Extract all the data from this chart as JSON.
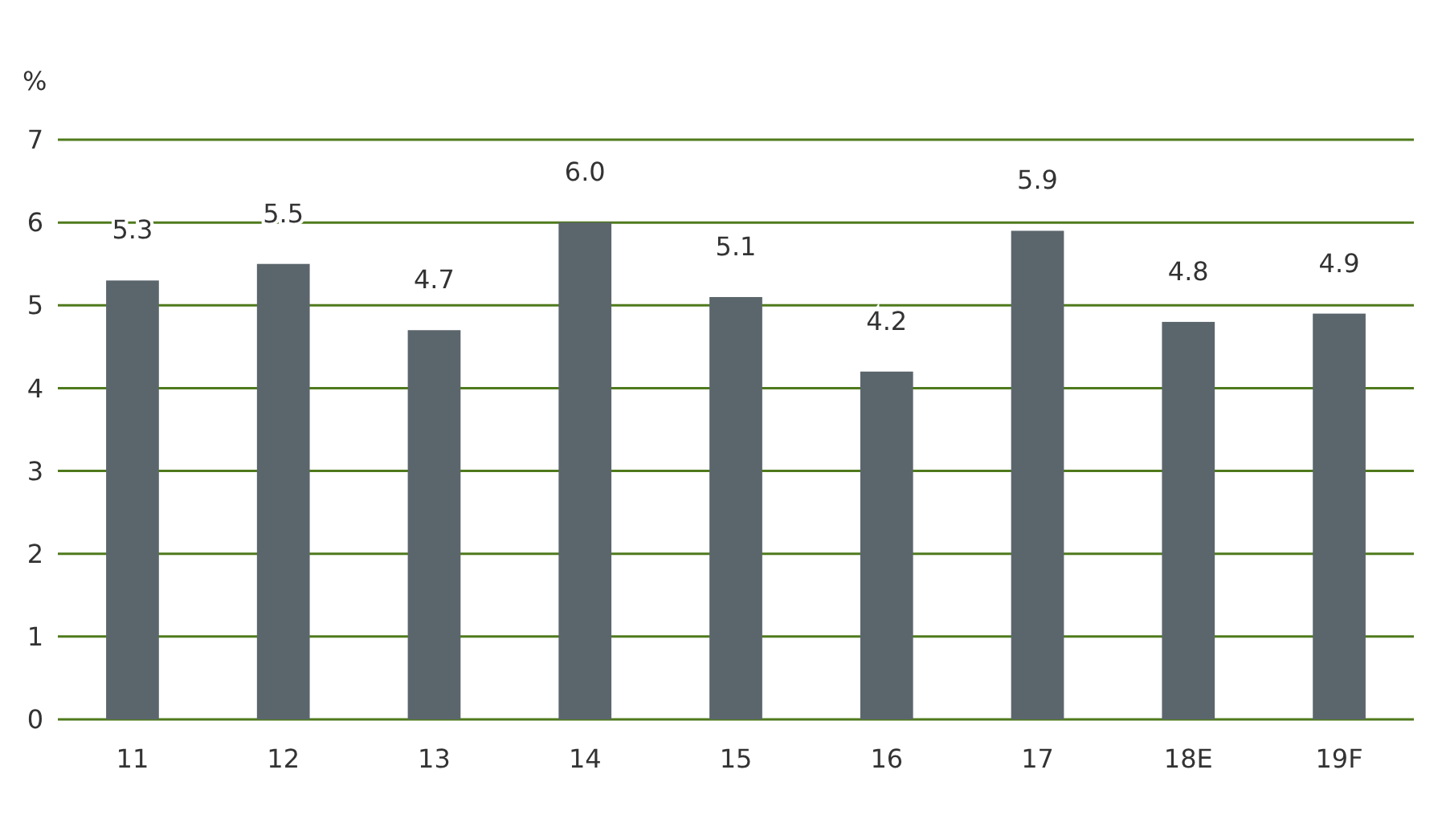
{
  "chart_data": {
    "type": "bar",
    "ylabel": "%",
    "categories": [
      "11",
      "12",
      "13",
      "14",
      "15",
      "16",
      "17",
      "18E",
      "19F"
    ],
    "values": [
      5.3,
      5.5,
      4.7,
      6.0,
      5.1,
      4.2,
      5.9,
      4.8,
      4.9
    ],
    "value_labels": [
      "5.3",
      "5.5",
      "4.7",
      "6.0",
      "5.1",
      "4.2",
      "5.9",
      "4.8",
      "4.9"
    ],
    "color": "#5b666c",
    "ylim": [
      0,
      7
    ],
    "yticks": [
      0,
      1,
      2,
      3,
      4,
      5,
      6,
      7
    ],
    "grid": "y"
  }
}
